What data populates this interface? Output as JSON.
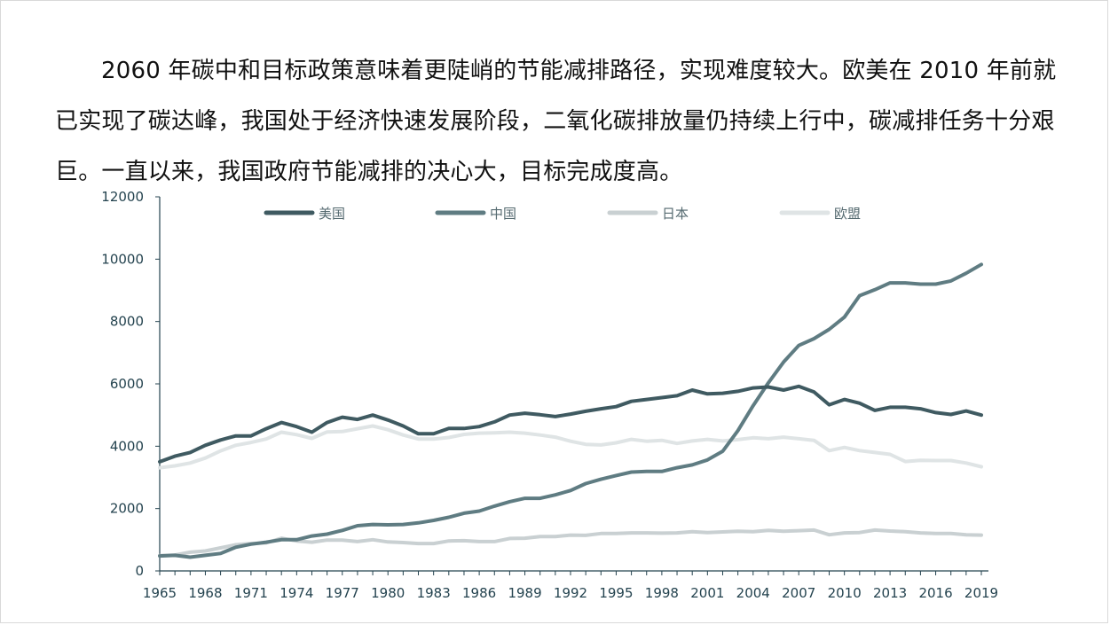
{
  "text": {
    "paragraph": "2060 年碳中和目标政策意味着更陡峭的节能减排路径，实现难度较大。欧美在 2010 年前就已实现了碳达峰，我国处于经济快速发展阶段，二氧化碳排放量仍持续上行中，碳减排任务十分艰巨。一直以来，我国政府节能减排的决心大，目标完成度高。"
  },
  "chart_data": {
    "type": "line",
    "title": "",
    "xlabel": "",
    "ylabel": "",
    "x": [
      1965,
      1966,
      1967,
      1968,
      1969,
      1970,
      1971,
      1972,
      1973,
      1974,
      1975,
      1976,
      1977,
      1978,
      1979,
      1980,
      1981,
      1982,
      1983,
      1984,
      1985,
      1986,
      1987,
      1988,
      1989,
      1990,
      1991,
      1992,
      1993,
      1994,
      1995,
      1996,
      1997,
      1998,
      1999,
      2000,
      2001,
      2002,
      2003,
      2004,
      2005,
      2006,
      2007,
      2008,
      2009,
      2010,
      2011,
      2012,
      2013,
      2014,
      2015,
      2016,
      2017,
      2018,
      2019
    ],
    "x_ticks": [
      "1965",
      "1968",
      "1971",
      "1974",
      "1977",
      "1980",
      "1983",
      "1986",
      "1989",
      "1992",
      "1995",
      "1998",
      "2001",
      "2004",
      "2007",
      "2010",
      "2013",
      "2016",
      "2019"
    ],
    "y_ticks": [
      "0",
      "2000",
      "4000",
      "6000",
      "8000",
      "10000",
      "12000"
    ],
    "ylim": [
      0,
      12000
    ],
    "legend_position": "top",
    "grid": false,
    "series": [
      {
        "name": "美国",
        "color": "#3f5a61",
        "values": [
          3500,
          3680,
          3800,
          4030,
          4200,
          4330,
          4330,
          4560,
          4760,
          4630,
          4450,
          4760,
          4930,
          4860,
          5000,
          4840,
          4650,
          4400,
          4400,
          4570,
          4570,
          4630,
          4780,
          5000,
          5060,
          5010,
          4950,
          5030,
          5120,
          5200,
          5270,
          5440,
          5500,
          5560,
          5620,
          5800,
          5680,
          5700,
          5760,
          5870,
          5900,
          5800,
          5920,
          5740,
          5330,
          5500,
          5380,
          5150,
          5250,
          5250,
          5200,
          5080,
          5020,
          5130,
          5000
        ]
      },
      {
        "name": "中国",
        "color": "#5f7c82",
        "values": [
          480,
          500,
          440,
          500,
          560,
          760,
          860,
          920,
          1000,
          1000,
          1120,
          1180,
          1300,
          1450,
          1490,
          1480,
          1490,
          1540,
          1620,
          1720,
          1850,
          1920,
          2080,
          2220,
          2330,
          2330,
          2440,
          2580,
          2800,
          2940,
          3060,
          3170,
          3190,
          3190,
          3310,
          3400,
          3560,
          3840,
          4500,
          5300,
          6030,
          6700,
          7230,
          7450,
          7750,
          8140,
          8830,
          9020,
          9240,
          9240,
          9200,
          9200,
          9300,
          9550,
          9830
        ]
      },
      {
        "name": "日本",
        "color": "#c9d0d2",
        "values": [
          490,
          510,
          600,
          640,
          740,
          840,
          880,
          900,
          1050,
          960,
          920,
          990,
          990,
          940,
          1000,
          930,
          910,
          880,
          880,
          960,
          970,
          940,
          940,
          1040,
          1050,
          1100,
          1100,
          1150,
          1140,
          1200,
          1200,
          1220,
          1220,
          1210,
          1220,
          1260,
          1230,
          1250,
          1270,
          1260,
          1300,
          1270,
          1290,
          1310,
          1160,
          1220,
          1230,
          1310,
          1280,
          1260,
          1220,
          1200,
          1200,
          1160,
          1150
        ]
      },
      {
        "name": "欧盟",
        "color": "#dfe4e5",
        "values": [
          3310,
          3370,
          3460,
          3620,
          3850,
          4030,
          4120,
          4230,
          4450,
          4370,
          4250,
          4460,
          4470,
          4560,
          4650,
          4530,
          4360,
          4230,
          4230,
          4280,
          4380,
          4420,
          4430,
          4450,
          4420,
          4360,
          4290,
          4160,
          4060,
          4040,
          4110,
          4220,
          4160,
          4190,
          4090,
          4170,
          4220,
          4170,
          4210,
          4270,
          4240,
          4290,
          4240,
          4190,
          3860,
          3960,
          3860,
          3800,
          3740,
          3510,
          3550,
          3540,
          3540,
          3460,
          3340
        ]
      }
    ]
  }
}
